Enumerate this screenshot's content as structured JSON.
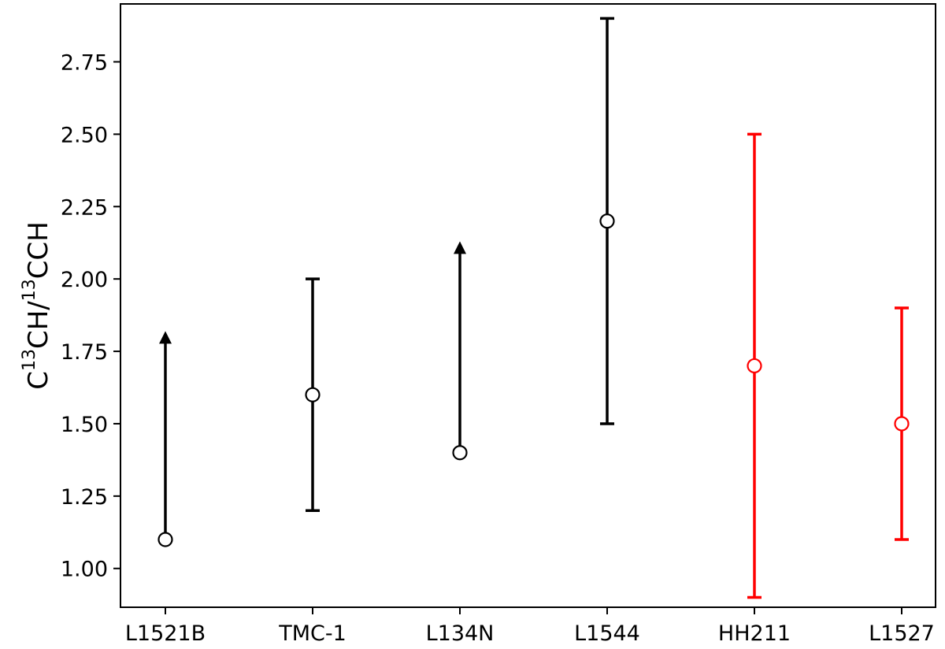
{
  "chart_data": {
    "type": "scatter",
    "categories": [
      "L1521B",
      "TMC-1",
      "L134N",
      "L1544",
      "HH211",
      "L1527"
    ],
    "ylabel": {
      "prefix": "C",
      "sup1": "13",
      "middle": "CH/",
      "sup2": "13",
      "suffix": "CCH"
    },
    "xlabel": "",
    "ylim": [
      0.9,
      2.9
    ],
    "yticks": [
      "1.00",
      "1.25",
      "1.50",
      "1.75",
      "2.00",
      "2.25",
      "2.50",
      "2.75"
    ],
    "grid": false,
    "points": [
      {
        "category": "L1521B",
        "value": 1.1,
        "lower_limit": true,
        "arrow_to": 1.82,
        "color": "#000000"
      },
      {
        "category": "TMC-1",
        "value": 1.6,
        "err_low": 1.2,
        "err_high": 2.0,
        "color": "#000000"
      },
      {
        "category": "L134N",
        "value": 1.4,
        "lower_limit": true,
        "arrow_to": 2.13,
        "color": "#000000"
      },
      {
        "category": "L1544",
        "value": 2.2,
        "err_low": 1.5,
        "err_high": 2.9,
        "color": "#000000"
      },
      {
        "category": "HH211",
        "value": 1.7,
        "err_low": 0.9,
        "err_high": 2.5,
        "color": "#ff0000"
      },
      {
        "category": "L1527",
        "value": 1.5,
        "err_low": 1.1,
        "err_high": 1.9,
        "color": "#ff0000"
      }
    ]
  }
}
